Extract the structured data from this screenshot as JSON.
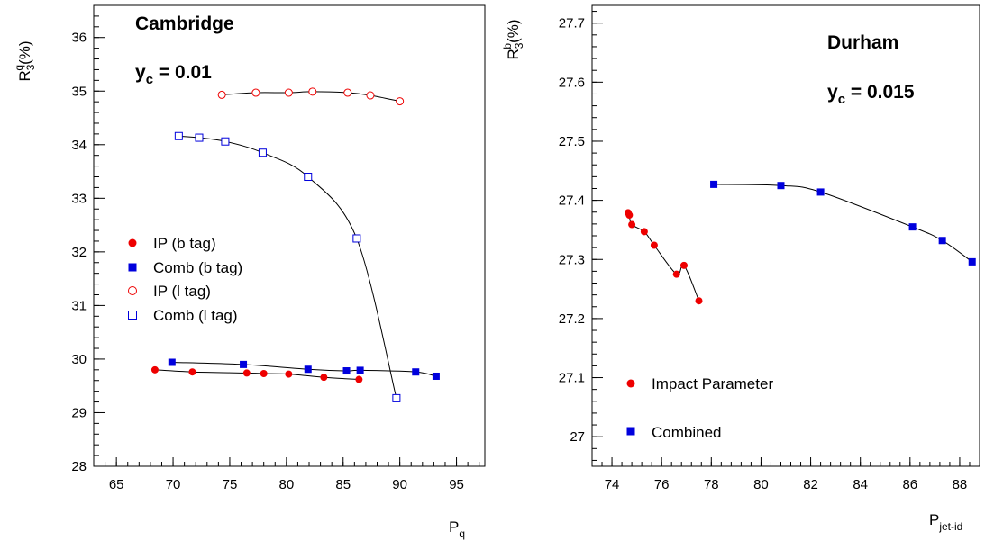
{
  "chart_data": [
    {
      "type": "scatter",
      "title": "",
      "ylabel": {
        "main": "R",
        "sub": "3",
        "sup": "q",
        "rest": "(%)"
      },
      "xlabel": {
        "main": "P",
        "sub": "q"
      },
      "xlim": [
        63,
        97.5
      ],
      "ylim": [
        28,
        36.6
      ],
      "xticks": [
        "65",
        "70",
        "75",
        "80",
        "85",
        "90",
        "95"
      ],
      "yticks": [
        "28",
        "29",
        "30",
        "31",
        "32",
        "33",
        "34",
        "35",
        "36"
      ],
      "annotations": {
        "title": "Cambridge",
        "yc_main": "y",
        "yc_sub": "c",
        "yc_value": " = 0.01"
      },
      "legend_position": "center-left",
      "series": [
        {
          "name": "IP (b tag)",
          "marker": "filled-circle",
          "color": "#ee0000",
          "x": [
            68.4,
            71.7,
            76.5,
            78.0,
            80.2,
            83.3,
            86.4
          ],
          "y": [
            29.8,
            29.76,
            29.74,
            29.73,
            29.72,
            29.66,
            29.62
          ]
        },
        {
          "name": "Comb (b tag)",
          "marker": "filled-square",
          "color": "#0000dd",
          "x": [
            69.9,
            76.2,
            81.9,
            85.3,
            86.5,
            91.4,
            93.2
          ],
          "y": [
            29.94,
            29.9,
            29.81,
            29.78,
            29.79,
            29.76,
            29.68
          ]
        },
        {
          "name": "IP (l tag)",
          "marker": "open-circle",
          "color": "#ee0000",
          "x": [
            74.3,
            77.3,
            80.2,
            82.3,
            85.4,
            87.4,
            90.0
          ],
          "y": [
            34.93,
            34.97,
            34.97,
            34.99,
            34.97,
            34.92,
            34.81
          ]
        },
        {
          "name": "Comb (l tag)",
          "marker": "open-square",
          "color": "#0000dd",
          "x": [
            70.5,
            72.3,
            74.6,
            77.9,
            81.9,
            86.2,
            89.7
          ],
          "y": [
            34.16,
            34.13,
            34.06,
            33.85,
            33.4,
            32.25,
            29.27
          ]
        }
      ]
    },
    {
      "type": "scatter",
      "title": "",
      "ylabel": {
        "main": "R",
        "sub": "3",
        "sup": "b",
        "rest": "(%)"
      },
      "xlabel": {
        "main": "P",
        "sub": "jet-id"
      },
      "xlim": [
        73.2,
        88.8
      ],
      "ylim": [
        26.95,
        27.73
      ],
      "xticks": [
        "74",
        "76",
        "78",
        "80",
        "82",
        "84",
        "86",
        "88"
      ],
      "yticks": [
        "27",
        "27.1",
        "27.2",
        "27.3",
        "27.4",
        "27.5",
        "27.6",
        "27.7"
      ],
      "annotations": {
        "title": "Durham",
        "yc_main": "y",
        "yc_sub": "c",
        "yc_value": " = 0.015"
      },
      "legend_position": "bottom-left",
      "series": [
        {
          "name": "Impact Parameter",
          "marker": "filled-circle",
          "color": "#ee0000",
          "x": [
            74.65,
            74.7,
            74.8,
            75.3,
            75.7,
            76.6,
            76.9,
            77.5
          ],
          "y": [
            27.379,
            27.375,
            27.359,
            27.347,
            27.324,
            27.275,
            27.29,
            27.23
          ]
        },
        {
          "name": "Combined",
          "marker": "filled-square",
          "color": "#0000dd",
          "x": [
            78.1,
            80.8,
            82.4,
            86.1,
            87.3,
            88.5
          ],
          "y": [
            27.427,
            27.425,
            27.414,
            27.355,
            27.332,
            27.296
          ]
        }
      ]
    }
  ]
}
